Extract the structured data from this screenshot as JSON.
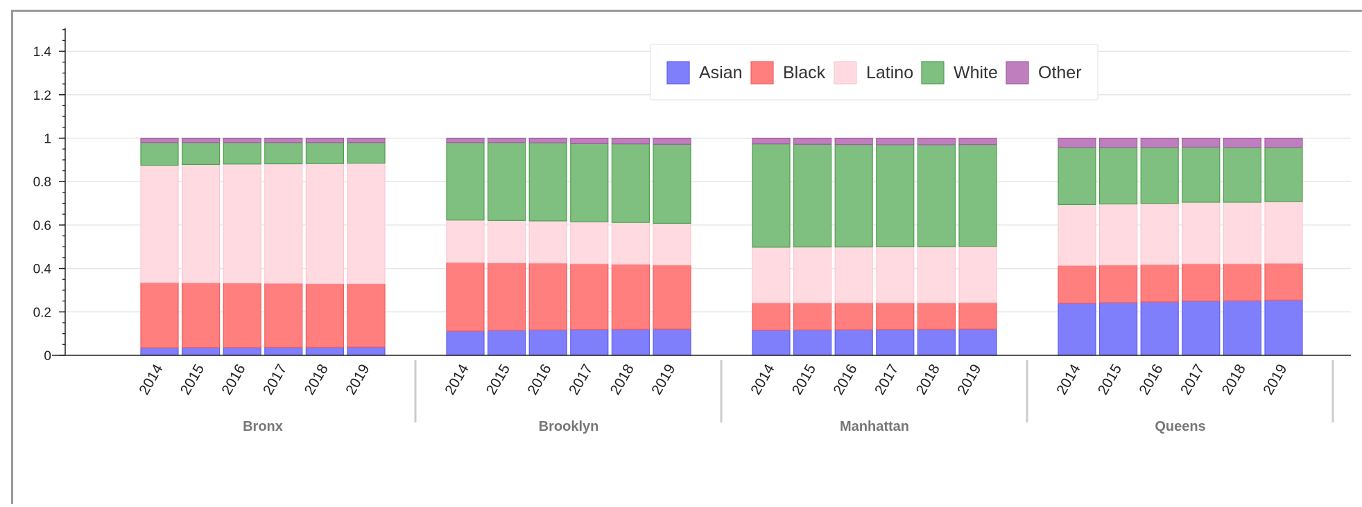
{
  "chart_data": {
    "type": "bar",
    "stacked": true,
    "groups": [
      "Bronx",
      "Brooklyn",
      "Manhattan",
      "Queens"
    ],
    "categories": [
      "2014",
      "2015",
      "2016",
      "2017",
      "2018",
      "2019"
    ],
    "ylim": [
      0,
      1.5
    ],
    "y_ticks": [
      "0",
      "0.2",
      "0.4",
      "0.6",
      "0.8",
      "1",
      "1.2",
      "1.4"
    ],
    "grid": true,
    "legend_position": "top-center",
    "series": [
      {
        "name": "Asian",
        "color": "#7f7ffb",
        "edge": "#5c5cf2",
        "values": {
          "Bronx": [
            0.035,
            0.036,
            0.036,
            0.037,
            0.037,
            0.038
          ],
          "Brooklyn": [
            0.112,
            0.115,
            0.117,
            0.119,
            0.12,
            0.121
          ],
          "Manhattan": [
            0.116,
            0.117,
            0.118,
            0.119,
            0.12,
            0.121
          ],
          "Queens": [
            0.24,
            0.243,
            0.246,
            0.25,
            0.251,
            0.254
          ]
        }
      },
      {
        "name": "Black",
        "color": "#ff7f7f",
        "edge": "#f25c5c",
        "values": {
          "Bronx": [
            0.3,
            0.298,
            0.297,
            0.295,
            0.293,
            0.292
          ],
          "Brooklyn": [
            0.316,
            0.311,
            0.308,
            0.303,
            0.3,
            0.295
          ],
          "Manhattan": [
            0.126,
            0.125,
            0.124,
            0.123,
            0.122,
            0.122
          ],
          "Queens": [
            0.174,
            0.173,
            0.172,
            0.172,
            0.171,
            0.17
          ]
        }
      },
      {
        "name": "Latino",
        "color": "#ffdae1",
        "edge": "#f8c8d2",
        "values": {
          "Bronx": [
            0.54,
            0.545,
            0.548,
            0.55,
            0.553,
            0.555
          ],
          "Brooklyn": [
            0.195,
            0.195,
            0.194,
            0.193,
            0.192,
            0.192
          ],
          "Manhattan": [
            0.256,
            0.257,
            0.257,
            0.258,
            0.258,
            0.259
          ],
          "Queens": [
            0.28,
            0.281,
            0.282,
            0.283,
            0.283,
            0.284
          ]
        }
      },
      {
        "name": "White",
        "color": "#7fbf7f",
        "edge": "#4e9e4e",
        "values": {
          "Bronx": [
            0.105,
            0.101,
            0.099,
            0.098,
            0.097,
            0.095
          ],
          "Brooklyn": [
            0.357,
            0.359,
            0.36,
            0.36,
            0.362,
            0.364
          ],
          "Manhattan": [
            0.476,
            0.473,
            0.472,
            0.47,
            0.47,
            0.469
          ],
          "Queens": [
            0.264,
            0.261,
            0.258,
            0.254,
            0.253,
            0.25
          ]
        }
      },
      {
        "name": "Other",
        "color": "#bf7fbf",
        "edge": "#a05ca0",
        "values": {
          "Bronx": [
            0.02,
            0.02,
            0.02,
            0.02,
            0.02,
            0.02
          ],
          "Brooklyn": [
            0.02,
            0.02,
            0.021,
            0.025,
            0.026,
            0.028
          ],
          "Manhattan": [
            0.026,
            0.028,
            0.029,
            0.03,
            0.03,
            0.029
          ],
          "Queens": [
            0.042,
            0.042,
            0.042,
            0.041,
            0.042,
            0.042
          ]
        }
      }
    ]
  }
}
